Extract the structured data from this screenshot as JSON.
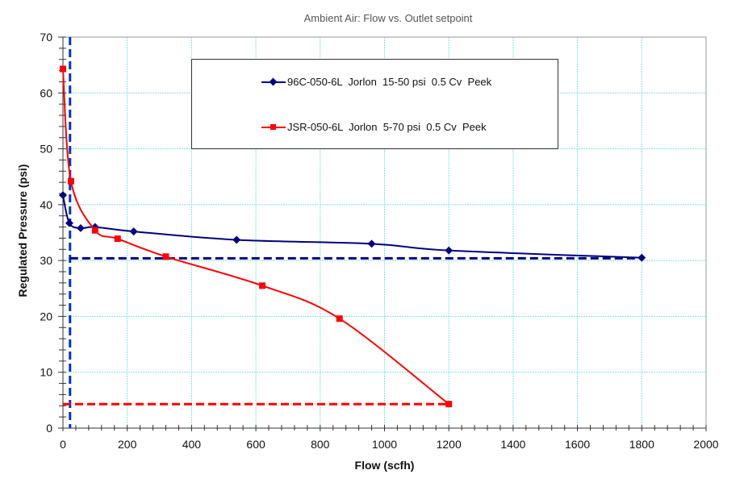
{
  "chart_data": {
    "type": "line",
    "title": "Ambient Air:  Flow vs. Outlet setpoint",
    "xlabel": "Flow (scfh)",
    "ylabel": "Regulated Pressure (psi)",
    "xlim": [
      0,
      2000
    ],
    "ylim": [
      0,
      70
    ],
    "xticks": [
      0,
      200,
      400,
      600,
      800,
      1000,
      1200,
      1400,
      1600,
      1800,
      2000
    ],
    "yticks": [
      0,
      10,
      20,
      30,
      40,
      50,
      60,
      70
    ],
    "grid": true,
    "legend_position": "upper center (inside plot)",
    "series": [
      {
        "name": "96C-050-6L  Jorlon  15-50 psi  0.5 Cv  Peek",
        "color": "#000080",
        "marker": "diamond",
        "x": [
          0,
          20,
          55,
          100,
          220,
          540,
          960,
          1200,
          1800
        ],
        "y": [
          41.7,
          36.7,
          35.8,
          36.0,
          35.2,
          33.7,
          33.0,
          31.8,
          30.5
        ]
      },
      {
        "name": "JSR-050-6L  Jorlon  5-70 psi  0.5 Cv  Peek",
        "color": "#FF0000",
        "marker": "square",
        "x": [
          0,
          25,
          100,
          170,
          320,
          620,
          860,
          1200
        ],
        "y": [
          64.3,
          44.2,
          35.4,
          33.9,
          30.7,
          25.5,
          19.6,
          4.3
        ]
      }
    ],
    "reference_lines": [
      {
        "orientation": "vertical",
        "x": 22,
        "color": "#0033CC",
        "style": "dashed"
      },
      {
        "orientation": "horizontal",
        "y": 30.4,
        "x_range": [
          22,
          1800
        ],
        "color": "#000080",
        "style": "dashed"
      },
      {
        "orientation": "horizontal",
        "y": 4.3,
        "x_range": [
          0,
          1200
        ],
        "color": "#FF0000",
        "style": "dashed"
      }
    ]
  },
  "legend": {
    "items": [
      {
        "label": "96C-050-6L  Jorlon  15-50 psi  0.5 Cv  Peek",
        "color": "#000080"
      },
      {
        "label": "JSR-050-6L  Jorlon  5-70 psi  0.5 Cv  Peek",
        "color": "#FF0000"
      }
    ]
  },
  "colors": {
    "grid": "#7FE5E5",
    "axis": "#333333",
    "frame": "#999999"
  }
}
